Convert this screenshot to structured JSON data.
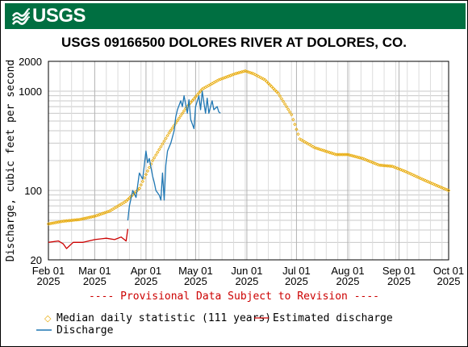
{
  "header": {
    "logo_text": "USGS",
    "logo_icon": "usgs-wave-logo",
    "title": "USGS 09166500 DOLORES RIVER AT DOLORES, CO."
  },
  "colors": {
    "banner": "#006f41",
    "median": "#e8a800",
    "estimated": "#cc0000",
    "discharge": "#1f77b4",
    "provisional": "#cc0000"
  },
  "provisional_note": "---- Provisional Data Subject to Revision ----",
  "legend": {
    "median_label": "Median daily statistic (111 years)",
    "estimated_label": "Estimated discharge",
    "discharge_label": "Discharge"
  },
  "chart_data": {
    "type": "line",
    "title": "USGS 09166500 DOLORES RIVER AT DOLORES, CO.",
    "ylabel": "Discharge, cubic feet per second",
    "xlabel": "",
    "yscale": "log",
    "ylim": [
      20,
      2000
    ],
    "xlim": [
      "2025-02-01",
      "2025-10-01"
    ],
    "y_ticks": [
      "20",
      "100",
      "1000",
      "2000"
    ],
    "x_ticks": [
      {
        "date": "2025-02-01",
        "label1": "Feb 01",
        "label2": "2025"
      },
      {
        "date": "2025-03-01",
        "label1": "Mar 01",
        "label2": "2025"
      },
      {
        "date": "2025-04-01",
        "label1": "Apr 01",
        "label2": "2025"
      },
      {
        "date": "2025-05-01",
        "label1": "May 01",
        "label2": "2025"
      },
      {
        "date": "2025-06-01",
        "label1": "Jun 01",
        "label2": "2025"
      },
      {
        "date": "2025-07-01",
        "label1": "Jul 01",
        "label2": "2025"
      },
      {
        "date": "2025-08-01",
        "label1": "Aug 01",
        "label2": "2025"
      },
      {
        "date": "2025-09-01",
        "label1": "Sep 01",
        "label2": "2025"
      },
      {
        "date": "2025-10-01",
        "label1": "Oct 01",
        "label2": "2025"
      }
    ],
    "grid": true,
    "legend_position": "bottom",
    "series": [
      {
        "name": "Median daily statistic (111 years)",
        "style": "points",
        "x": [
          "2025-02-01",
          "2025-02-10",
          "2025-02-20",
          "2025-03-01",
          "2025-03-10",
          "2025-03-20",
          "2025-03-28",
          "2025-04-05",
          "2025-04-15",
          "2025-04-25",
          "2025-05-05",
          "2025-05-15",
          "2025-05-25",
          "2025-05-31",
          "2025-06-05",
          "2025-06-12",
          "2025-06-20",
          "2025-06-28",
          "2025-07-03",
          "2025-07-12",
          "2025-07-25",
          "2025-08-01",
          "2025-08-10",
          "2025-08-20",
          "2025-08-28",
          "2025-09-05",
          "2025-09-15",
          "2025-09-25",
          "2025-10-01"
        ],
        "y": [
          46,
          49,
          51,
          55,
          62,
          78,
          105,
          200,
          380,
          670,
          1050,
          1300,
          1500,
          1600,
          1500,
          1300,
          950,
          580,
          330,
          270,
          230,
          230,
          210,
          180,
          175,
          155,
          130,
          110,
          100
        ]
      },
      {
        "name": "Estimated discharge",
        "style": "line",
        "x": [
          "2025-02-01",
          "2025-02-07",
          "2025-02-10",
          "2025-02-12",
          "2025-02-16",
          "2025-02-22",
          "2025-03-01",
          "2025-03-08",
          "2025-03-13",
          "2025-03-17",
          "2025-03-20",
          "2025-03-21"
        ],
        "y": [
          30,
          31,
          29,
          26,
          30,
          30,
          32,
          33,
          32,
          34,
          31,
          41
        ]
      },
      {
        "name": "Discharge",
        "style": "line",
        "x": [
          "2025-03-21",
          "2025-03-22",
          "2025-03-24",
          "2025-03-26",
          "2025-03-28",
          "2025-03-30",
          "2025-04-01",
          "2025-04-02",
          "2025-04-03",
          "2025-04-05",
          "2025-04-06",
          "2025-04-07",
          "2025-04-09",
          "2025-04-10",
          "2025-04-11",
          "2025-04-12",
          "2025-04-13",
          "2025-04-14",
          "2025-04-16",
          "2025-04-18",
          "2025-04-19",
          "2025-04-20",
          "2025-04-22",
          "2025-04-23",
          "2025-04-24",
          "2025-04-26",
          "2025-04-27",
          "2025-04-28",
          "2025-04-30",
          "2025-05-01",
          "2025-05-03",
          "2025-05-04",
          "2025-05-05",
          "2025-05-07",
          "2025-05-08",
          "2025-05-09",
          "2025-05-11",
          "2025-05-12",
          "2025-05-14",
          "2025-05-15",
          "2025-05-16"
        ],
        "y": [
          50,
          70,
          100,
          85,
          150,
          130,
          250,
          190,
          210,
          140,
          120,
          100,
          90,
          80,
          150,
          80,
          180,
          250,
          300,
          400,
          550,
          650,
          800,
          700,
          900,
          600,
          820,
          520,
          420,
          700,
          900,
          650,
          1000,
          600,
          850,
          600,
          800,
          650,
          700,
          620,
          600
        ]
      }
    ]
  }
}
